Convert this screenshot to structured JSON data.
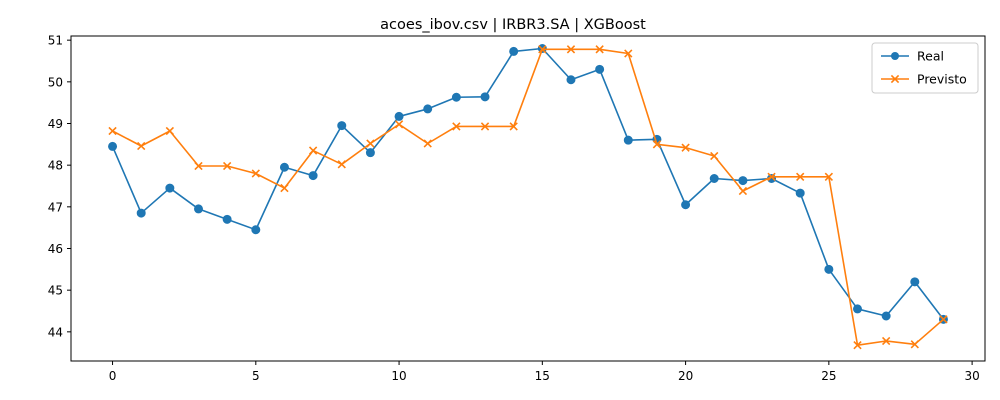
{
  "chart_data": {
    "type": "line",
    "title": "acoes_ibov.csv | IRBR3.SA | XGBoost",
    "xlabel": "",
    "ylabel": "",
    "xlim": [
      -1.45,
      30.45
    ],
    "ylim": [
      43.3,
      51.1
    ],
    "xticks": [
      0,
      5,
      10,
      15,
      20,
      25,
      30
    ],
    "yticks": [
      44,
      45,
      46,
      47,
      48,
      49,
      50,
      51
    ],
    "grid": false,
    "legend_position": "top-right",
    "x": [
      0,
      1,
      2,
      3,
      4,
      5,
      6,
      7,
      8,
      9,
      10,
      11,
      12,
      13,
      14,
      15,
      16,
      17,
      18,
      19,
      20,
      21,
      22,
      23,
      24,
      25,
      26,
      27,
      28,
      29
    ],
    "series": [
      {
        "name": "Real",
        "color": "#1f77b4",
        "marker": "circle",
        "values": [
          48.45,
          46.85,
          47.45,
          46.95,
          46.7,
          46.45,
          47.95,
          47.75,
          48.95,
          48.3,
          49.17,
          49.35,
          49.63,
          49.64,
          50.73,
          50.8,
          50.05,
          50.3,
          48.6,
          48.62,
          47.05,
          47.68,
          47.63,
          47.68,
          47.33,
          45.5,
          44.55,
          44.38,
          45.2,
          44.3
        ]
      },
      {
        "name": "Previsto",
        "color": "#ff7f0e",
        "marker": "x",
        "values": [
          48.82,
          48.46,
          48.82,
          47.98,
          47.98,
          47.8,
          47.45,
          48.35,
          48.02,
          48.52,
          48.98,
          48.52,
          48.93,
          48.93,
          48.93,
          50.78,
          50.78,
          50.78,
          50.68,
          48.5,
          48.42,
          48.22,
          47.38,
          47.72,
          47.72,
          47.72,
          43.68,
          43.78,
          43.7,
          44.3
        ]
      }
    ]
  }
}
